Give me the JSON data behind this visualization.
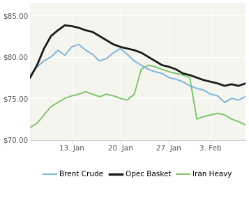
{
  "ylim": [
    70.0,
    86.5
  ],
  "yticks": [
    70.0,
    75.0,
    80.0,
    85.0
  ],
  "ytick_labels": [
    "$70.00",
    "$75.00",
    "$80.00",
    "$85.00"
  ],
  "xtick_labels": [
    "13. Jan",
    "20. Jan",
    "27. Jan",
    "3. Feb"
  ],
  "xtick_positions": [
    6,
    13,
    20,
    26
  ],
  "legend": [
    "Brent Crude",
    "Opec Basket",
    "Iran Heavy"
  ],
  "legend_colors": [
    "#7FB3D8",
    "#1a1a1a",
    "#7DC36B"
  ],
  "background_color": "#ffffff",
  "plot_bg_color": "#f5f5f0",
  "brent_crude": [
    77.8,
    78.8,
    79.5,
    80.0,
    80.8,
    80.2,
    81.2,
    81.5,
    80.8,
    80.3,
    79.5,
    79.8,
    80.5,
    81.0,
    80.3,
    79.5,
    79.0,
    78.5,
    78.2,
    78.0,
    77.5,
    77.3,
    77.0,
    76.5,
    76.2,
    76.0,
    75.5,
    75.3,
    74.5,
    75.0,
    74.8,
    75.2
  ],
  "opec_basket": [
    77.5,
    79.0,
    81.0,
    82.5,
    83.2,
    83.8,
    83.7,
    83.5,
    83.2,
    83.0,
    82.5,
    82.0,
    81.5,
    81.2,
    81.0,
    80.8,
    80.5,
    80.0,
    79.5,
    79.0,
    78.8,
    78.5,
    78.0,
    77.8,
    77.5,
    77.2,
    77.0,
    76.8,
    76.5,
    76.7,
    76.5,
    76.8
  ],
  "iran_heavy": [
    71.5,
    72.0,
    73.0,
    74.0,
    74.5,
    75.0,
    75.3,
    75.5,
    75.8,
    75.5,
    75.2,
    75.5,
    75.3,
    75.0,
    74.8,
    75.5,
    78.5,
    79.0,
    78.8,
    78.5,
    78.2,
    78.0,
    77.8,
    77.5,
    72.5,
    72.8,
    73.0,
    73.2,
    73.0,
    72.5,
    72.2,
    71.8
  ]
}
